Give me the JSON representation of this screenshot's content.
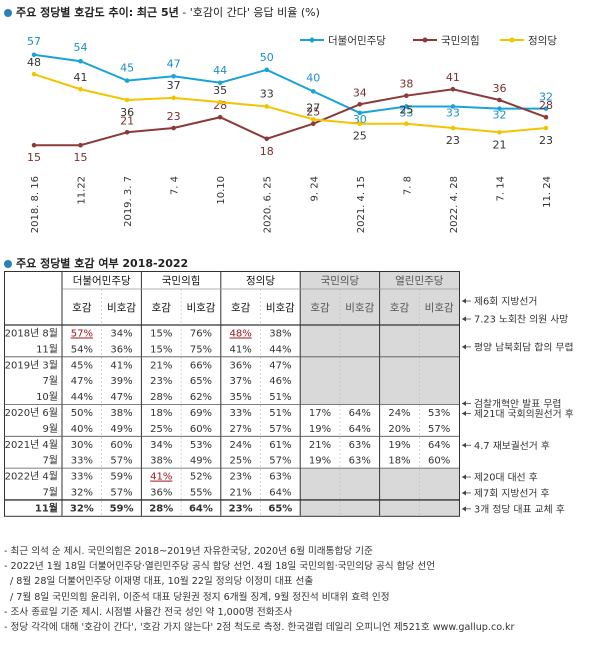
{
  "section1": {
    "title": "주요 정당별 호감도 추이: 최근 5년",
    "subtitle": " - '호감이 간다' 응답 비율 (%)"
  },
  "section2": {
    "title": "주요 정당별 호감 여부 2018-2022"
  },
  "colors": {
    "democratic": "#1aa3d9",
    "ppp": "#8b3a3a",
    "justice": "#f2c500",
    "grey_bg": "#d9d9d9"
  },
  "chart_data": {
    "type": "line",
    "x": [
      "2018. 8. 16",
      "11.22",
      "2019. 3. 7",
      "7. 4",
      "10.10",
      "2020. 6. 25",
      "9. 24",
      "2021. 4. 15",
      "7. 8",
      "2022. 4. 28",
      "7. 14",
      "11. 24"
    ],
    "series": [
      {
        "name": "더불어민주당",
        "color": "#1aa3d9",
        "values": [
          57,
          54,
          45,
          47,
          44,
          50,
          40,
          30,
          33,
          33,
          32,
          32
        ]
      },
      {
        "name": "국민의힘",
        "color": "#8b3a3a",
        "values": [
          15,
          15,
          21,
          23,
          28,
          18,
          25,
          34,
          38,
          41,
          36,
          28
        ]
      },
      {
        "name": "정의당",
        "color": "#f2c500",
        "values": [
          48,
          41,
          36,
          37,
          35,
          33,
          27,
          25,
          25,
          23,
          21,
          23
        ]
      }
    ],
    "ylim": [
      10,
      62
    ],
    "legend": "top-right"
  },
  "table": {
    "parties": [
      "더불어민주당",
      "국민의힘",
      "정의당",
      "국민의당",
      "열린민주당"
    ],
    "sub_headers": [
      "호감",
      "비호감"
    ],
    "rows": [
      {
        "label": "2018년 8월",
        "values": [
          "57%",
          "34%",
          "15%",
          "76%",
          "48%",
          "38%",
          "",
          "",
          "",
          ""
        ],
        "underline": [
          0,
          4
        ],
        "group_start": true
      },
      {
        "label": "11월",
        "values": [
          "54%",
          "36%",
          "15%",
          "75%",
          "41%",
          "44%",
          "",
          "",
          "",
          ""
        ]
      },
      {
        "label": "2019년 3월",
        "values": [
          "45%",
          "41%",
          "21%",
          "66%",
          "36%",
          "47%",
          "",
          "",
          "",
          ""
        ],
        "group_start": true
      },
      {
        "label": "7월",
        "values": [
          "47%",
          "39%",
          "23%",
          "65%",
          "37%",
          "46%",
          "",
          "",
          "",
          ""
        ]
      },
      {
        "label": "10월",
        "values": [
          "44%",
          "47%",
          "28%",
          "62%",
          "35%",
          "51%",
          "",
          "",
          "",
          ""
        ]
      },
      {
        "label": "2020년 6월",
        "values": [
          "50%",
          "38%",
          "18%",
          "69%",
          "33%",
          "51%",
          "17%",
          "64%",
          "24%",
          "53%"
        ],
        "group_start": true
      },
      {
        "label": "9월",
        "values": [
          "40%",
          "49%",
          "25%",
          "60%",
          "27%",
          "57%",
          "19%",
          "64%",
          "20%",
          "57%"
        ]
      },
      {
        "label": "2021년 4월",
        "values": [
          "30%",
          "60%",
          "34%",
          "53%",
          "24%",
          "61%",
          "21%",
          "63%",
          "19%",
          "64%"
        ],
        "group_start": true
      },
      {
        "label": "7월",
        "values": [
          "33%",
          "57%",
          "38%",
          "49%",
          "25%",
          "57%",
          "19%",
          "63%",
          "18%",
          "60%"
        ]
      },
      {
        "label": "2022년 4월",
        "values": [
          "33%",
          "59%",
          "41%",
          "52%",
          "23%",
          "63%",
          "",
          "",
          "",
          ""
        ],
        "underline": [
          2
        ],
        "group_start": true
      },
      {
        "label": "7월",
        "values": [
          "32%",
          "57%",
          "36%",
          "55%",
          "21%",
          "64%",
          "",
          "",
          "",
          ""
        ]
      },
      {
        "label": "11월",
        "values": [
          "32%",
          "59%",
          "28%",
          "64%",
          "23%",
          "65%",
          "",
          "",
          "",
          ""
        ],
        "bold": true
      }
    ],
    "annotations": [
      {
        "text": "제6회 지방선거",
        "row": 0,
        "pos": "top"
      },
      {
        "text": "7.23 노회찬 의원 사망",
        "row": 0,
        "pos": "bottom"
      },
      {
        "text": "평양 남북회담 합의 무렵",
        "row": 1,
        "pos": "top"
      },
      {
        "text": "검찰개혁안 발표 무렵",
        "row": 4,
        "pos": "bottom"
      },
      {
        "text": "제21대 국회의원선거 후",
        "row": 5,
        "pos": "mid"
      },
      {
        "text": "4.7 재보궐선거 후",
        "row": 7,
        "pos": "mid"
      },
      {
        "text": "제20대 대선 후",
        "row": 9,
        "pos": "mid"
      },
      {
        "text": "제7회 지방선거 후",
        "row": 10,
        "pos": "mid"
      },
      {
        "text": "3개 정당 대표 교체 후",
        "row": 11,
        "pos": "mid"
      }
    ]
  },
  "notes": [
    "- 최근 의석 순 제시. 국민의힘은 2018~2019년 자유한국당, 2020년 6월 미래통합당 기준",
    "- 2022년 1월 18일 더불어민주당·열린민주당 공식 합당 선언. 4월 18일 국민의힘·국민의당 공식 합당 선언",
    "/ 8월 28일 더불어민주당 이재명 대표, 10월 22일 정의당 이정미 대표 선출",
    "/ 7월 8일 국민의힘 윤리위, 이준석 대표 당원권 정지 6개월 징계, 9월 정진석 비대위 효력 인정",
    "- 조사 종료일 기준 제시. 시점별 사율간 전국 성인 약 1,000명 전화조사",
    "- 정당 각각에 대해 '호감이 간다', '호감 가지 않는다' 2점 척도로 측정. 한국갤럽 데일리 오피니언 제521호 www.gallup.co.kr"
  ]
}
